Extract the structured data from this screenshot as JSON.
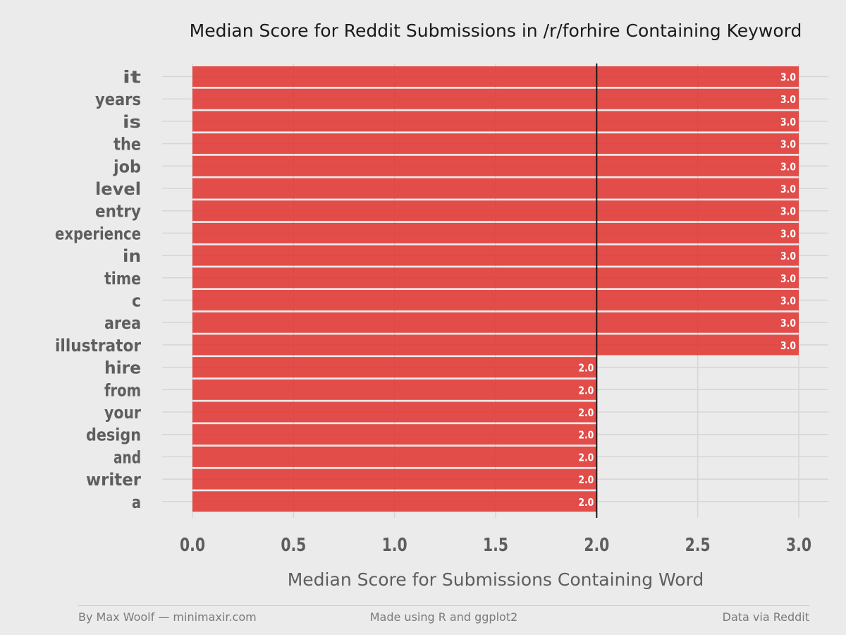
{
  "chart_data": {
    "type": "bar",
    "orientation": "horizontal",
    "title": "Median Score for Reddit Submissions in /r/forhire Containing Keyword",
    "xlabel": "Median Score for Submissions Containing Word",
    "ylabel": "",
    "categories": [
      "it",
      "years",
      "is",
      "the",
      "job",
      "level",
      "entry",
      "experience",
      "in",
      "time",
      "c",
      "area",
      "illustrator",
      "hire",
      "from",
      "your",
      "design",
      "and",
      "writer",
      "a"
    ],
    "values": [
      3.0,
      3.0,
      3.0,
      3.0,
      3.0,
      3.0,
      3.0,
      3.0,
      3.0,
      3.0,
      3.0,
      3.0,
      3.0,
      2.0,
      2.0,
      2.0,
      2.0,
      2.0,
      2.0,
      2.0
    ],
    "data_labels": [
      "3.0",
      "3.0",
      "3.0",
      "3.0",
      "3.0",
      "3.0",
      "3.0",
      "3.0",
      "3.0",
      "3.0",
      "3.0",
      "3.0",
      "3.0",
      "2.0",
      "2.0",
      "2.0",
      "2.0",
      "2.0",
      "2.0",
      "2.0"
    ],
    "xlim": [
      0,
      3.0
    ],
    "xticks": [
      0.0,
      0.5,
      1.0,
      1.5,
      2.0,
      2.5,
      3.0
    ],
    "xtick_labels": [
      "0.0",
      "0.5",
      "1.0",
      "1.5",
      "2.0",
      "2.5",
      "3.0"
    ],
    "reference_line": 2.0,
    "grid": true,
    "legend": "none",
    "colors": {
      "bar": "#e0312d",
      "background": "#ebebeb",
      "grid": "#d6d6d6",
      "reference_line": "#1a1a1a",
      "axis_text": "#5e5e5e",
      "title_text": "#1a1a1a"
    }
  },
  "footer": {
    "left": "By Max Woolf — minimaxir.com",
    "center": "Made using R and ggplot2",
    "right": "Data via Reddit"
  }
}
